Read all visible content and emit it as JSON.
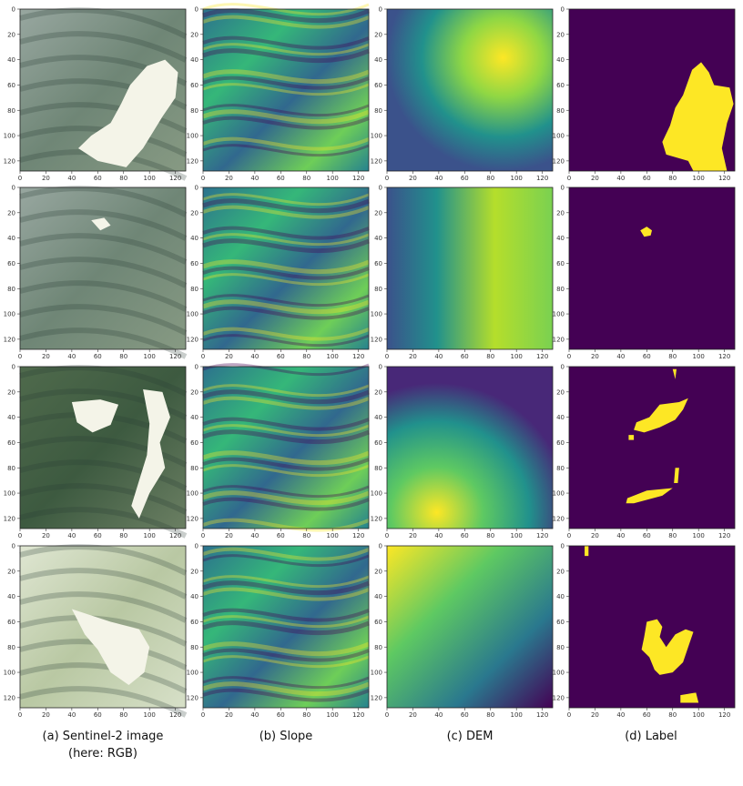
{
  "figure": {
    "columns": [
      {
        "id": "rgb",
        "caption_line1": "(a) Sentinel-2 image",
        "caption_line2": "(here: RGB)"
      },
      {
        "id": "slope",
        "caption_line1": "(b) Slope",
        "caption_line2": ""
      },
      {
        "id": "dem",
        "caption_line1": "(c) DEM",
        "caption_line2": ""
      },
      {
        "id": "label",
        "caption_line1": "(d) Label",
        "caption_line2": ""
      }
    ],
    "rows": 4,
    "x_ticks": [
      "0",
      "20",
      "40",
      "60",
      "80",
      "100",
      "120"
    ],
    "y_ticks": [
      "0",
      "20",
      "40",
      "60",
      "80",
      "100",
      "120"
    ],
    "colors": {
      "label_background": "#440154",
      "label_foreground": "#fde725",
      "rgb_vegetation": "#6e8a68",
      "rgb_bare": "#f4f4e8"
    }
  }
}
